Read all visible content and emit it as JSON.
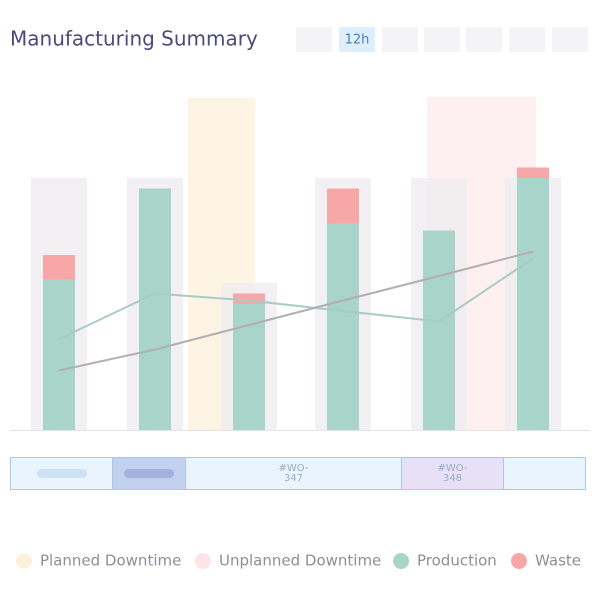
{
  "header": {
    "title": "Manufacturing Summary",
    "active_range": "12h"
  },
  "chart_data": {
    "type": "bar",
    "ylim": [
      0,
      100
    ],
    "capacity": {
      "color": "#efecef",
      "values": [
        72,
        72,
        42,
        72,
        72,
        72
      ]
    },
    "series": [
      {
        "name": "Production",
        "color": "#a8d4ca",
        "values": [
          43,
          69,
          36,
          59,
          57,
          72
        ]
      },
      {
        "name": "Waste",
        "color": "#f7a7a7",
        "values": [
          7,
          0,
          3,
          10,
          0,
          3
        ]
      }
    ],
    "lines": [
      {
        "color": "#a9cbc7",
        "values": [
          26,
          39,
          37,
          34,
          31,
          49
        ]
      },
      {
        "color": "#b3aeb3",
        "values": [
          17,
          23,
          30,
          37,
          44,
          51
        ]
      }
    ],
    "downtime": [
      {
        "name": "Planned Downtime",
        "color": "#fdf1dc"
      },
      {
        "name": "Unplanned Downtime",
        "color": "#fde4e6"
      }
    ]
  },
  "timeline": {
    "orders": [
      "#WO-347",
      "#WO-348"
    ]
  }
}
